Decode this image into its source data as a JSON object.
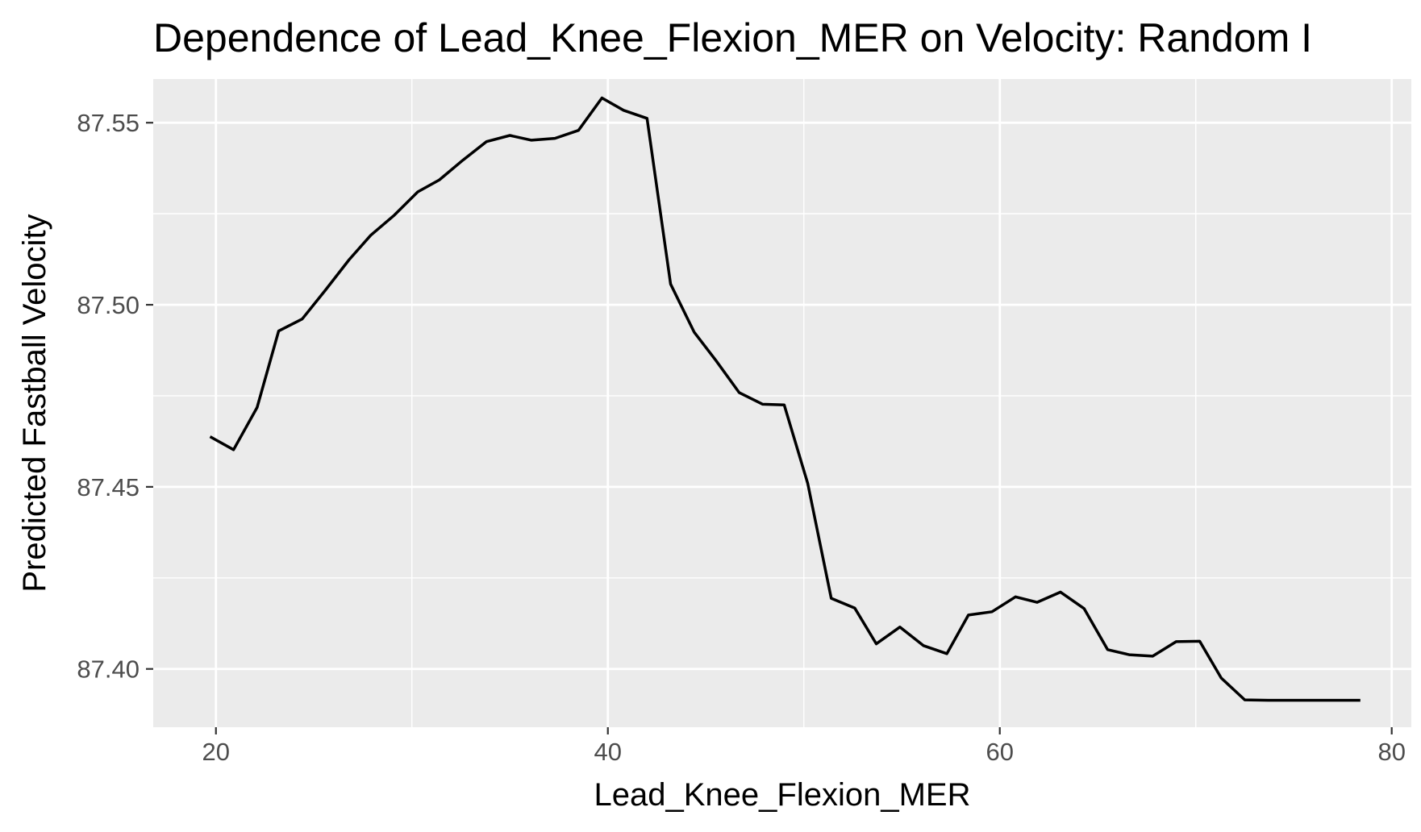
{
  "chart_data": {
    "type": "line",
    "title": "Dependence of Lead_Knee_Flexion_MER on Velocity: Random I",
    "xlabel": "Lead_Knee_Flexion_MER",
    "ylabel": "Predicted Fastball Velocity",
    "xlim": [
      16.8,
      81.0
    ],
    "ylim": [
      87.384,
      87.562
    ],
    "x_ticks": [
      20,
      40,
      60,
      80
    ],
    "x_tick_labels": [
      "20",
      "40",
      "60",
      "80"
    ],
    "y_ticks": [
      87.4,
      87.45,
      87.5,
      87.55
    ],
    "y_tick_labels": [
      "87.40",
      "87.45",
      "87.50",
      "87.55"
    ],
    "grid": true,
    "legend": "none",
    "colors": {
      "panel_background": "#ebebeb",
      "grid_major": "#ffffff",
      "grid_minor": "#ffffff",
      "line": "#000000",
      "tick_label": "#4d4d4d",
      "tick_mark": "#333333"
    },
    "series": [
      {
        "x": [
          19.7,
          20.9,
          22.1,
          23.2,
          24.4,
          25.6,
          26.8,
          27.9,
          29.1,
          30.3,
          31.4,
          32.6,
          33.8,
          35.0,
          36.1,
          37.3,
          38.5,
          39.7,
          40.8,
          42.0,
          43.2,
          44.4,
          45.5,
          46.7,
          47.9,
          49.0,
          50.2,
          51.4,
          52.6,
          53.7,
          54.9,
          56.1,
          57.3,
          58.4,
          59.6,
          60.8,
          61.9,
          63.1,
          64.3,
          65.5,
          66.6,
          67.8,
          69.0,
          70.2,
          71.3,
          72.5,
          73.7,
          74.8,
          76.0,
          77.2,
          78.4
        ],
        "y": [
          87.4638,
          87.4602,
          87.4718,
          87.4928,
          87.4961,
          87.5041,
          87.5124,
          87.5191,
          87.5246,
          87.531,
          87.5343,
          87.5397,
          87.5448,
          87.5465,
          87.5452,
          87.5457,
          87.5479,
          87.5568,
          87.5534,
          87.5512,
          87.5057,
          87.4925,
          87.4848,
          87.4759,
          87.4727,
          87.4725,
          87.4509,
          87.4194,
          87.4167,
          87.4069,
          87.4115,
          87.4064,
          87.4042,
          87.4148,
          87.4157,
          87.4198,
          87.4183,
          87.4211,
          87.4166,
          87.4053,
          87.4039,
          87.4035,
          87.4075,
          87.4076,
          87.3975,
          87.3915,
          87.3914,
          87.3914,
          87.3914,
          87.3914,
          87.3914
        ]
      }
    ]
  }
}
